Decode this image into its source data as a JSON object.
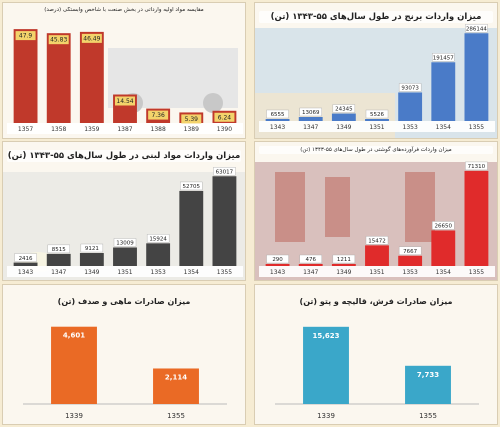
{
  "chart_data": [
    {
      "type": "bar",
      "title": "مقایسه مواد اولیه وارداتی در بخش صنعت با شاخص وابستگی (درصد)",
      "categories": [
        "1357",
        "1358",
        "1359",
        "1387",
        "1388",
        "1389",
        "1390"
      ],
      "values": [
        47.9,
        45.83,
        46.49,
        14.54,
        7.36,
        5.39,
        6.24
      ],
      "labels": [
        "47.9",
        "45.83",
        "46.49",
        "14.54",
        "7.36",
        "5.39",
        "6.24"
      ],
      "colors": [
        "#c0392b"
      ],
      "ylim": [
        0,
        50
      ]
    },
    {
      "type": "bar",
      "title": "میزان واردات برنج در طول سال‌های ۵۵-۱۳۴۳ (تن)",
      "categories": [
        "1343",
        "1347",
        "1349",
        "1351",
        "1353",
        "1354",
        "1355"
      ],
      "values": [
        6555,
        13069,
        24345,
        5526,
        93073,
        191457,
        286144
      ],
      "labels": [
        "6555",
        "13069",
        "24345",
        "5526",
        "93073",
        "191457",
        "286144"
      ],
      "colors": [
        "#4a7bc8"
      ],
      "ylim": [
        0,
        300000
      ]
    },
    {
      "type": "bar",
      "title": "میزان واردات مواد لبنی در طول سال‌های ۵۵-۱۳۴۳ (تن)",
      "categories": [
        "1343",
        "1347",
        "1349",
        "1351",
        "1353",
        "1354",
        "1355"
      ],
      "values": [
        2416,
        8515,
        9121,
        13009,
        15924,
        52705,
        63017
      ],
      "labels": [
        "2416",
        "8515",
        "9121",
        "13009",
        "15924",
        "52705",
        "63017"
      ],
      "colors": [
        "#444444"
      ],
      "ylim": [
        0,
        66000
      ]
    },
    {
      "type": "bar",
      "title": "میزان واردات فرآورده‌های گوشتی در طول سال‌های ۵۵-۱۳۴۳ (تن)",
      "categories": [
        "1343",
        "1347",
        "1349",
        "1351",
        "1353",
        "1354",
        "1355"
      ],
      "values": [
        290,
        476,
        1211,
        15472,
        7667,
        26650,
        71310
      ],
      "labels": [
        "290",
        "476",
        "1211",
        "15472",
        "7667",
        "26650",
        "71310"
      ],
      "colors": [
        "#e02b2b"
      ],
      "ylim": [
        0,
        75000
      ]
    },
    {
      "type": "bar",
      "title": "میزان صادرات ماهی و صدف (تن)",
      "categories": [
        "1339",
        "1355"
      ],
      "values": [
        4601,
        2114
      ],
      "labels": [
        "4,601",
        "2,114"
      ],
      "colors": [
        "#ea6a25"
      ],
      "ylim": [
        0,
        5000
      ]
    },
    {
      "type": "bar",
      "title": "میزان صادرات فرش، قالیچه و پتو (تن)",
      "categories": [
        "1339",
        "1355"
      ],
      "values": [
        15623,
        7733
      ],
      "labels": [
        "15,623",
        "7,733"
      ],
      "colors": [
        "#3aa7c9"
      ],
      "ylim": [
        0,
        17000
      ]
    }
  ]
}
